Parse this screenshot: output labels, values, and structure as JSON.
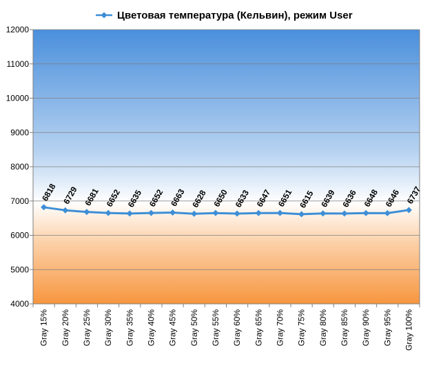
{
  "chart_data": {
    "type": "line",
    "title": "Цветовая температура (Кельвин), режим User",
    "categories": [
      "Gray 15%",
      "Gray 20%",
      "Gray 25%",
      "Gray 30%",
      "Gray 35%",
      "Gray 40%",
      "Gray 45%",
      "Gray 50%",
      "Gray 55%",
      "Gray 60%",
      "Gray 65%",
      "Gray 70%",
      "Gray 75%",
      "Gray 80%",
      "Gray 85%",
      "Gray 90%",
      "Gray 95%",
      "Gray 100%"
    ],
    "series": [
      {
        "name": "Цветовая температура (Кельвин), режим User",
        "values": [
          6818,
          6729,
          6681,
          6652,
          6635,
          6652,
          6663,
          6628,
          6650,
          6633,
          6647,
          6651,
          6615,
          6639,
          6636,
          6648,
          6646,
          6737
        ],
        "color": "#3d8ed6"
      }
    ],
    "ylim": [
      4000,
      12000
    ],
    "yticks": [
      4000,
      5000,
      6000,
      7000,
      8000,
      9000,
      10000,
      11000,
      12000
    ],
    "grid": true,
    "legend_position": "top",
    "background_gradient": [
      "#4a8fdc",
      "#ffffff",
      "#f7963f"
    ]
  }
}
